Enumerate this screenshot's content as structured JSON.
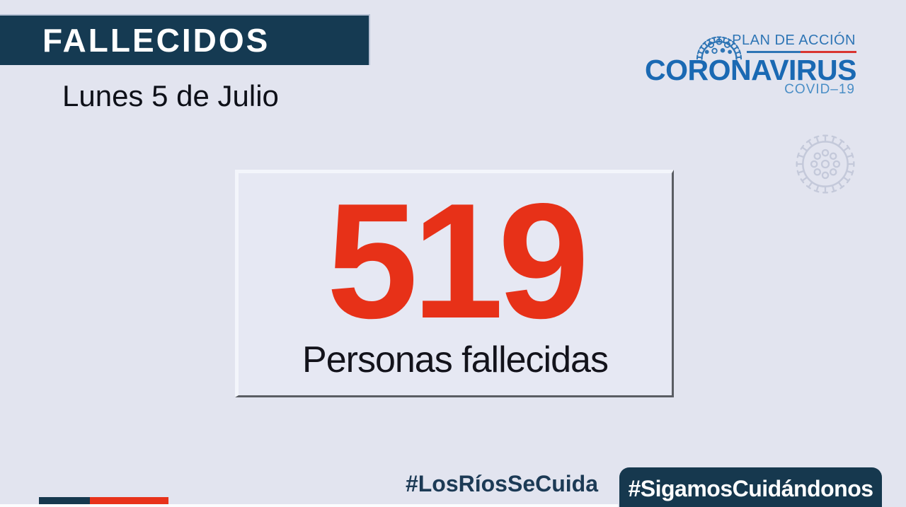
{
  "header": {
    "title": "FALLECIDOS",
    "date": "Lunes 5 de Julio"
  },
  "logo": {
    "plan": "PLAN DE ACCIÓN",
    "brand": "CORONAVIRUS",
    "sub": "COVID–19"
  },
  "stat": {
    "value": "519",
    "label": "Personas fallecidas"
  },
  "footer": {
    "hashtag_region": "#LosRíosSeCuida",
    "hashtag_national": "#SigamosCuidándonos"
  },
  "colors": {
    "background": "#e2e4ef",
    "navy": "#16384e",
    "navy_bar": "#153a52",
    "red": "#e73118",
    "chile_red": "#e8321a",
    "logo_blue": "#1a69b3",
    "logo_blue_light": "#4a8ec6",
    "plan_blue": "#2e75b5",
    "underline_red": "#d93430",
    "watermark": "#c4c9da"
  }
}
